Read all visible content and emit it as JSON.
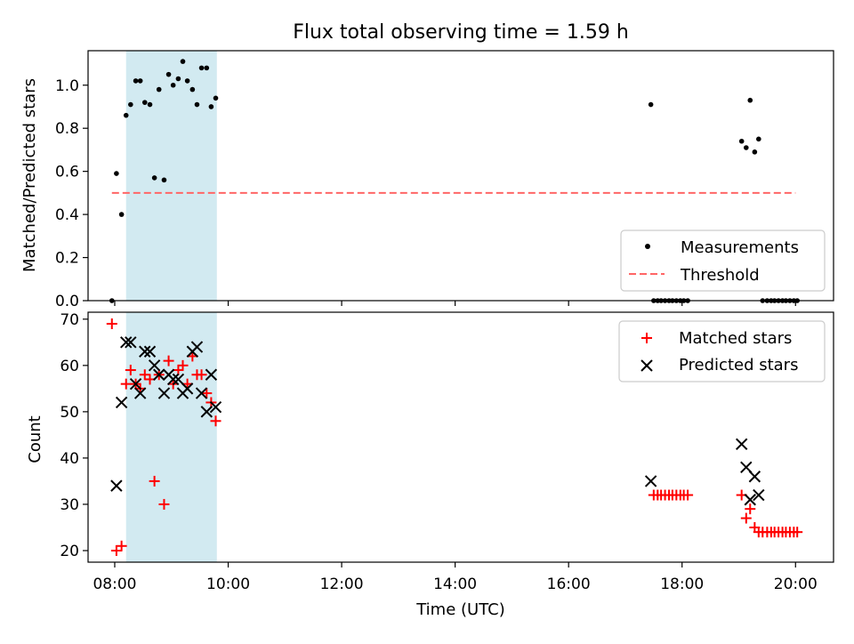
{
  "figure": {
    "title": "Flux total observing time = 1.59 h"
  },
  "chart_data": [
    {
      "type": "scatter",
      "ylabel": "Matched/Predicted stars",
      "ylim": [
        0,
        1.16
      ],
      "yticks": [
        "0.0",
        "0.2",
        "0.4",
        "0.6",
        "0.8",
        "1.0"
      ],
      "xlim": [
        7.53,
        20.67
      ],
      "shaded_interval": [
        8.2,
        9.8
      ],
      "shade_color": "#add8e6",
      "threshold": {
        "value": 0.5,
        "x_range": [
          7.95,
          20.0
        ],
        "color": "#ff6666"
      },
      "legend": {
        "position": "lower-right",
        "measurements": "Measurements",
        "threshold": "Threshold"
      },
      "series": [
        {
          "name": "Measurements",
          "color": "#000000",
          "x": [
            7.95,
            8.03,
            8.12,
            8.2,
            8.28,
            8.37,
            8.45,
            8.53,
            8.62,
            8.7,
            8.78,
            8.87,
            8.95,
            9.03,
            9.12,
            9.2,
            9.28,
            9.37,
            9.45,
            9.53,
            9.62,
            9.7,
            9.78,
            17.45,
            17.5,
            17.57,
            17.63,
            17.7,
            17.77,
            17.83,
            17.9,
            17.97,
            18.03,
            18.1,
            19.05,
            19.13,
            19.2,
            19.28,
            19.35,
            19.42,
            19.5,
            19.57,
            19.63,
            19.7,
            19.77,
            19.83,
            19.9,
            19.97,
            20.03
          ],
          "y": [
            0.0,
            0.59,
            0.4,
            0.86,
            0.91,
            1.02,
            1.02,
            0.92,
            0.91,
            0.57,
            0.98,
            0.56,
            1.05,
            1.0,
            1.03,
            1.11,
            1.02,
            0.98,
            0.91,
            1.08,
            1.08,
            0.9,
            0.94,
            0.91,
            0.0,
            0.0,
            0.0,
            0.0,
            0.0,
            0.0,
            0.0,
            0.0,
            0.0,
            0.0,
            0.74,
            0.71,
            0.93,
            0.69,
            0.75,
            0.0,
            0.0,
            0.0,
            0.0,
            0.0,
            0.0,
            0.0,
            0.0,
            0.0,
            0.0
          ]
        }
      ]
    },
    {
      "type": "scatter",
      "xlabel": "Time (UTC)",
      "ylabel": "Count",
      "ylim": [
        17.5,
        71.5
      ],
      "yticks": [
        "20",
        "30",
        "40",
        "50",
        "60",
        "70"
      ],
      "xlim": [
        7.53,
        20.67
      ],
      "xticks": [
        "08:00",
        "10:00",
        "12:00",
        "14:00",
        "16:00",
        "18:00",
        "20:00"
      ],
      "shaded_interval": [
        8.2,
        9.8
      ],
      "legend": {
        "position": "top-right",
        "matched": "Matched stars",
        "predicted": "Predicted stars"
      },
      "series": [
        {
          "name": "Matched stars",
          "marker": "plus",
          "color": "#ff0000",
          "x": [
            7.95,
            8.03,
            8.12,
            8.2,
            8.28,
            8.37,
            8.45,
            8.53,
            8.62,
            8.7,
            8.78,
            8.87,
            8.95,
            9.03,
            9.12,
            9.2,
            9.28,
            9.37,
            9.45,
            9.53,
            9.62,
            9.7,
            9.78,
            17.5,
            17.57,
            17.63,
            17.7,
            17.77,
            17.83,
            17.9,
            17.97,
            18.03,
            18.1,
            19.05,
            19.13,
            19.2,
            19.28,
            19.35,
            19.42,
            19.5,
            19.57,
            19.63,
            19.7,
            19.77,
            19.83,
            19.9,
            19.97,
            20.03
          ],
          "y": [
            69,
            20,
            21,
            56,
            59,
            56,
            55,
            58,
            57,
            35,
            58,
            30,
            61,
            56,
            59,
            60,
            56,
            62,
            58,
            58,
            54,
            52,
            48,
            32,
            32,
            32,
            32,
            32,
            32,
            32,
            32,
            32,
            32,
            32,
            27,
            29,
            25,
            24,
            24,
            24,
            24,
            24,
            24,
            24,
            24,
            24,
            24,
            24
          ]
        },
        {
          "name": "Predicted stars",
          "marker": "x",
          "color": "#000000",
          "x": [
            8.03,
            8.12,
            8.2,
            8.28,
            8.37,
            8.45,
            8.53,
            8.62,
            8.7,
            8.78,
            8.87,
            8.95,
            9.03,
            9.12,
            9.2,
            9.28,
            9.37,
            9.45,
            9.53,
            9.62,
            9.7,
            9.78,
            17.45,
            19.05,
            19.13,
            19.28,
            19.35,
            19.2
          ],
          "y": [
            34,
            52,
            65,
            65,
            56,
            54,
            63,
            63,
            60,
            58,
            54,
            58,
            57,
            57,
            54,
            55,
            63,
            64,
            54,
            50,
            58,
            51,
            35,
            43,
            38,
            36,
            32,
            31
          ]
        }
      ]
    }
  ]
}
